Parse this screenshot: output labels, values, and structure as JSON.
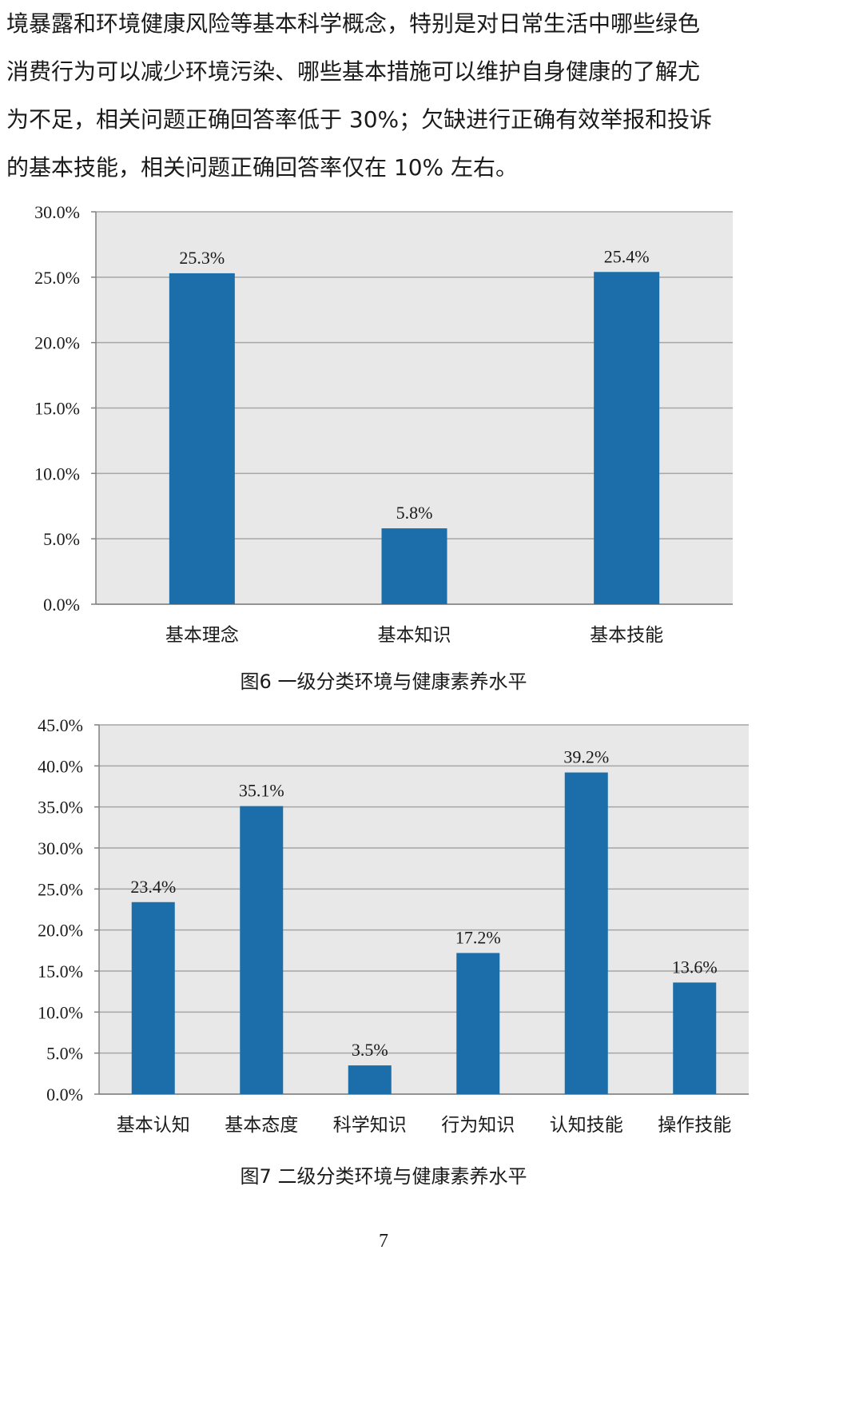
{
  "intro": {
    "lines": [
      "境暴露和环境健康风险等基本科学概念，特别是对日常生活中哪些绿色",
      "消费行为可以减少环境污染、哪些基本措施可以维护自身健康的了解尤",
      "为不足，相关问题正确回答率低于 30%；欠缺进行正确有效举报和投诉",
      "的基本技能，相关问题正确回答率仅在 10% 左右。"
    ]
  },
  "colors": {
    "bar": "#1b6eaa",
    "plot_bg": "#e8e8e8",
    "gridline": "#a6a6a6",
    "axis": "#808080"
  },
  "chart_data": [
    {
      "type": "bar",
      "title": "",
      "xlabel": "",
      "ylabel": "",
      "categories": [
        "基本理念",
        "基本知识",
        "基本技能"
      ],
      "values": [
        25.3,
        5.8,
        25.4
      ],
      "data_labels": [
        "25.3%",
        "5.8%",
        "25.4%"
      ],
      "ylim": [
        0,
        30
      ],
      "y_ticks": [
        "0.0%",
        "5.0%",
        "10.0%",
        "15.0%",
        "20.0%",
        "25.0%",
        "30.0%"
      ],
      "grid": true,
      "legend": "none"
    },
    {
      "type": "bar",
      "title": "",
      "xlabel": "",
      "ylabel": "",
      "categories": [
        "基本认知",
        "基本态度",
        "科学知识",
        "行为知识",
        "认知技能",
        "操作技能"
      ],
      "values": [
        23.4,
        35.1,
        3.5,
        17.2,
        39.2,
        13.6
      ],
      "data_labels": [
        "23.4%",
        "35.1%",
        "3.5%",
        "17.2%",
        "39.2%",
        "13.6%"
      ],
      "ylim": [
        0,
        45
      ],
      "y_ticks": [
        "0.0%",
        "5.0%",
        "10.0%",
        "15.0%",
        "20.0%",
        "25.0%",
        "30.0%",
        "35.0%",
        "40.0%",
        "45.0%"
      ],
      "grid": true,
      "legend": "none"
    }
  ],
  "captions": {
    "figure6": "图6  一级分类环境与健康素养水平",
    "figure7": "图7  二级分类环境与健康素养水平"
  },
  "page_number": "7"
}
